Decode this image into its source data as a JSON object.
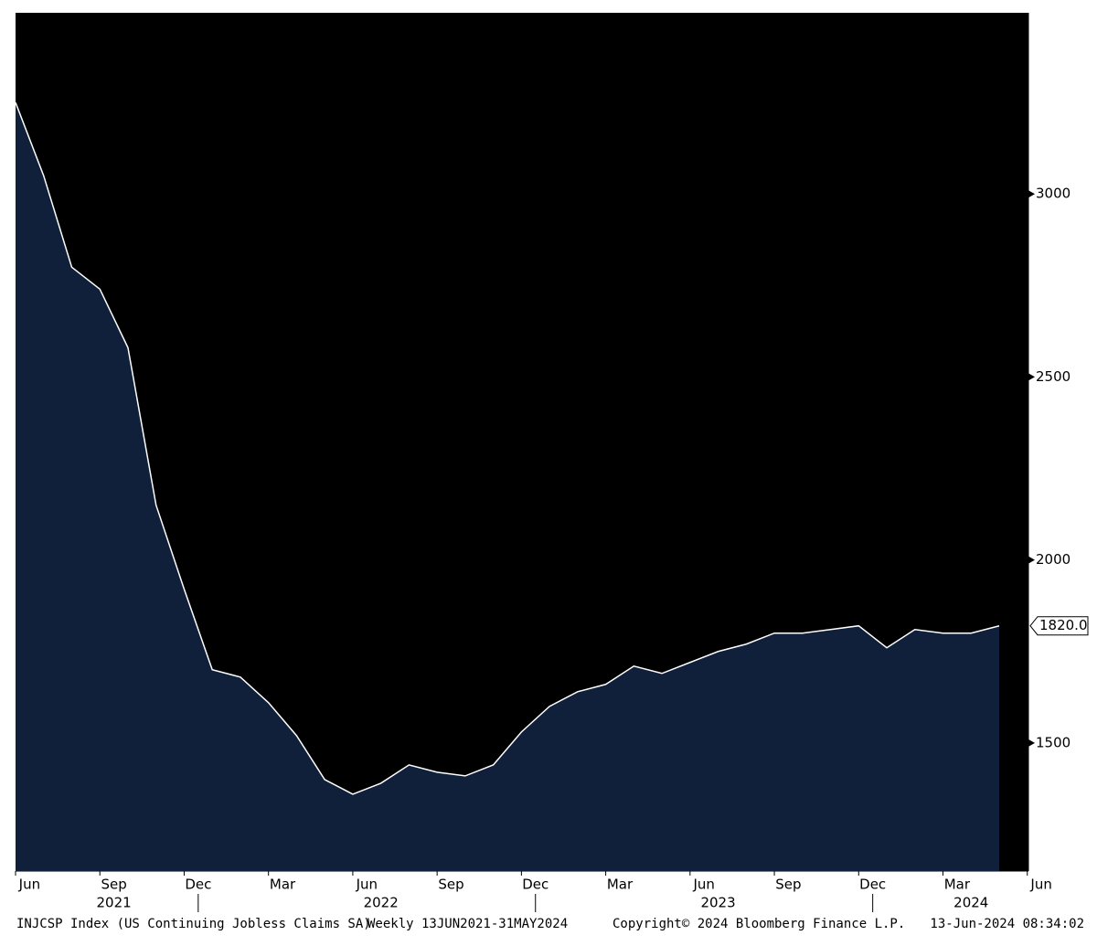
{
  "chart_data": {
    "type": "area",
    "x": [
      "2021-06",
      "2021-07",
      "2021-08",
      "2021-09",
      "2021-10",
      "2021-11",
      "2021-12",
      "2022-01",
      "2022-02",
      "2022-03",
      "2022-04",
      "2022-05",
      "2022-06",
      "2022-07",
      "2022-08",
      "2022-09",
      "2022-10",
      "2022-11",
      "2022-12",
      "2023-01",
      "2023-02",
      "2023-03",
      "2023-04",
      "2023-05",
      "2023-06",
      "2023-07",
      "2023-08",
      "2023-09",
      "2023-10",
      "2023-11",
      "2023-12",
      "2024-01",
      "2024-02",
      "2024-03",
      "2024-04",
      "2024-05"
    ],
    "series": [
      {
        "name": "INJCSP Index",
        "color": "#ffffff",
        "fill": "#101f3a",
        "values": [
          3250,
          3050,
          2800,
          2740,
          2580,
          2150,
          1920,
          1700,
          1680,
          1610,
          1520,
          1400,
          1360,
          1390,
          1440,
          1420,
          1410,
          1440,
          1530,
          1600,
          1640,
          1660,
          1710,
          1690,
          1720,
          1750,
          1770,
          1800,
          1800,
          1810,
          1820,
          1760,
          1810,
          1800,
          1800,
          1820
        ],
        "value_labels": [
          null,
          null,
          null,
          null,
          null,
          null,
          null,
          null,
          null,
          null,
          null,
          null,
          null,
          null,
          null,
          null,
          null,
          null,
          null,
          null,
          null,
          null,
          null,
          null,
          null,
          null,
          null,
          null,
          null,
          null,
          null,
          null,
          null,
          null,
          null,
          "1820.0"
        ]
      }
    ],
    "ylim": [
      1150,
      3495
    ],
    "yticks": [
      1500,
      2000,
      2500,
      3000
    ],
    "xticks": [
      {
        "value": "2021-06",
        "label": "Jun"
      },
      {
        "value": "2021-09",
        "label": "Sep"
      },
      {
        "value": "2021-12",
        "label": "Dec"
      },
      {
        "value": "2022-03",
        "label": "Mar"
      },
      {
        "value": "2022-06",
        "label": "Jun"
      },
      {
        "value": "2022-09",
        "label": "Sep"
      },
      {
        "value": "2022-12",
        "label": "Dec"
      },
      {
        "value": "2023-03",
        "label": "Mar"
      },
      {
        "value": "2023-06",
        "label": "Jun"
      },
      {
        "value": "2023-09",
        "label": "Sep"
      },
      {
        "value": "2023-12",
        "label": "Dec"
      },
      {
        "value": "2024-03",
        "label": "Mar"
      },
      {
        "value": "2024-06",
        "label": "Jun"
      }
    ],
    "years": [
      2021,
      2022,
      2023,
      2024
    ]
  },
  "footer": {
    "ticker": "INJCSP Index (US Continuing Jobless Claims SA)",
    "info": "Weekly 13JUN2021-31MAY2024",
    "copyright": "Copyright© 2024 Bloomberg Finance L.P.",
    "timestamp": "13-Jun-2024 08:34:02"
  }
}
